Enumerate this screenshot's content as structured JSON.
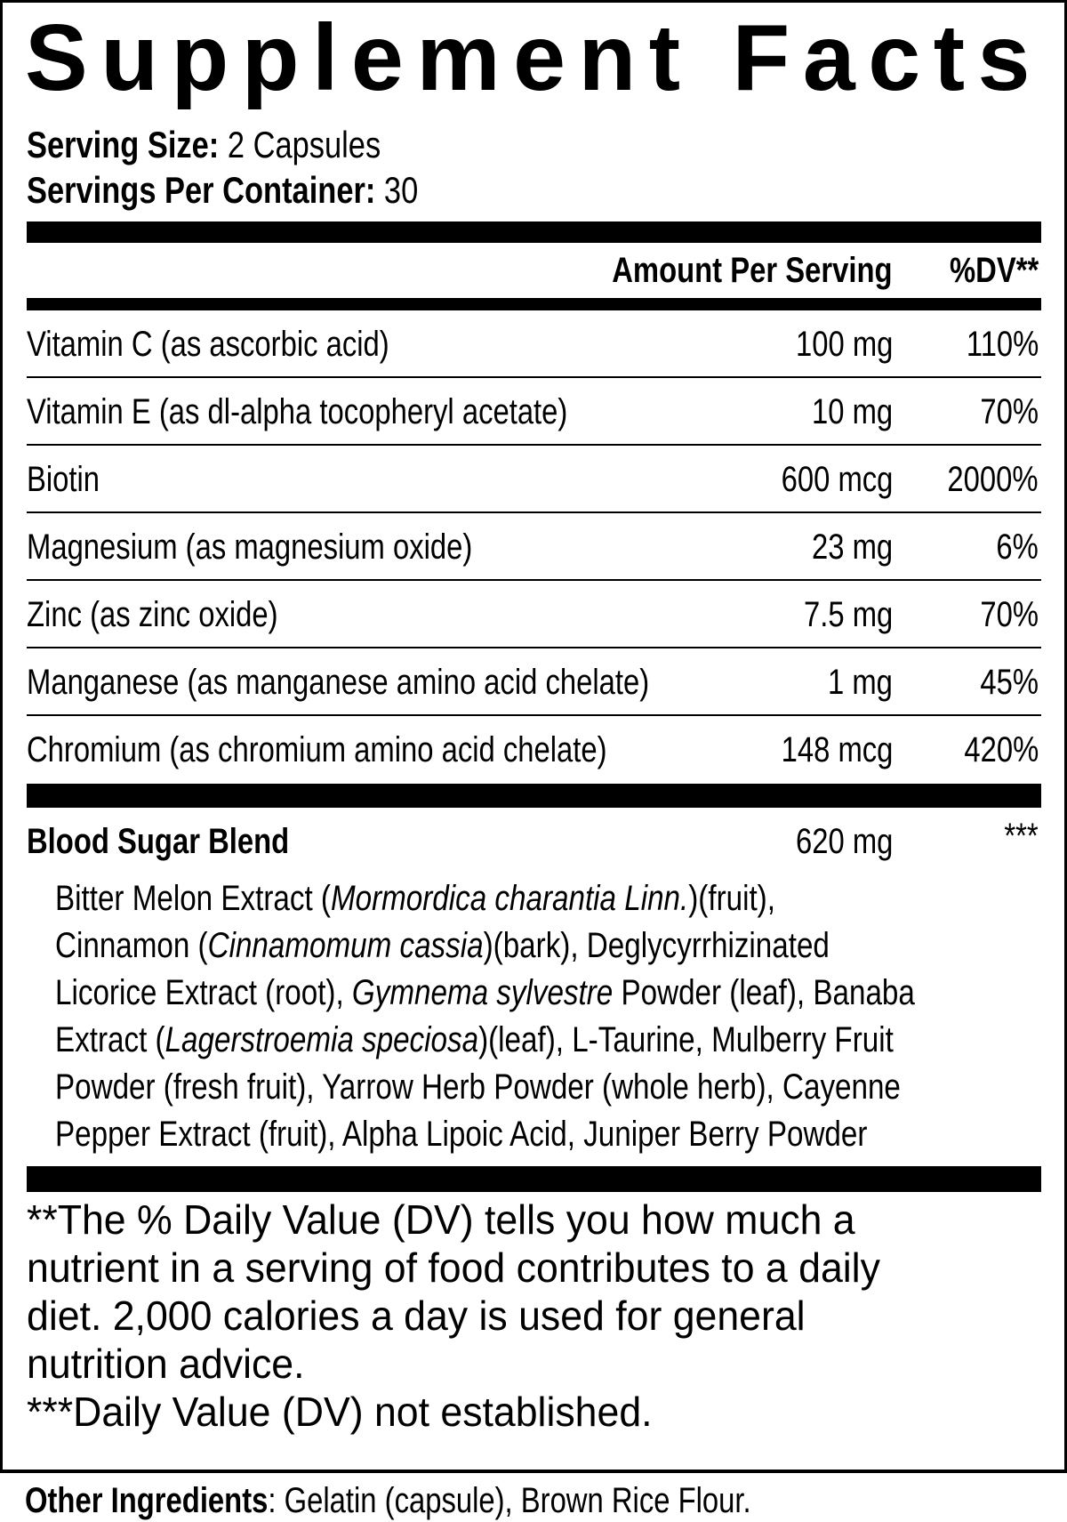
{
  "title": "Supplement Facts",
  "serving": {
    "size_label": "Serving Size:",
    "size_value": "2 Capsules",
    "per_container_label": "Servings Per Container:",
    "per_container_value": "30"
  },
  "header": {
    "amount": "Amount Per Serving",
    "dv": "%DV**"
  },
  "nutrients": [
    {
      "name": "Vitamin C (as ascorbic acid)",
      "amount": "100 mg",
      "dv": "110%"
    },
    {
      "name": "Vitamin E (as dl-alpha tocopheryl acetate)",
      "amount": "10 mg",
      "dv": "70%"
    },
    {
      "name": "Biotin",
      "amount": "600 mcg",
      "dv": "2000%"
    },
    {
      "name": "Magnesium (as magnesium oxide)",
      "amount": "23 mg",
      "dv": "6%"
    },
    {
      "name": "Zinc (as zinc oxide)",
      "amount": "7.5 mg",
      "dv": "70%"
    },
    {
      "name": "Manganese (as manganese amino acid chelate)",
      "amount": "1 mg",
      "dv": "45%"
    },
    {
      "name": "Chromium (as chromium amino acid chelate)",
      "amount": "148 mcg",
      "dv": "420%"
    }
  ],
  "blend": {
    "name": "Blood Sugar Blend",
    "amount": "620 mg",
    "dv": "***",
    "lines": [
      [
        {
          "t": "Bitter Melon Extract (",
          "i": false
        },
        {
          "t": "Mormordica charantia Linn.",
          "i": true
        },
        {
          "t": ")(fruit),",
          "i": false
        }
      ],
      [
        {
          "t": "Cinnamon (",
          "i": false
        },
        {
          "t": "Cinnamomum cassia",
          "i": true
        },
        {
          "t": ")(bark), Deglycyrrhizinated",
          "i": false
        }
      ],
      [
        {
          "t": "Licorice Extract (root), ",
          "i": false
        },
        {
          "t": "Gymnema sylvestre",
          "i": true
        },
        {
          "t": " Powder (leaf), Banaba",
          "i": false
        }
      ],
      [
        {
          "t": "Extract (",
          "i": false
        },
        {
          "t": "Lagerstroemia speciosa",
          "i": true
        },
        {
          "t": ")(leaf), L-Taurine, Mulberry Fruit",
          "i": false
        }
      ],
      [
        {
          "t": "Powder (fresh fruit), Yarrow Herb Powder (whole herb), Cayenne",
          "i": false
        }
      ],
      [
        {
          "t": "Pepper Extract (fruit), Alpha Lipoic Acid, Juniper Berry Powder",
          "i": false
        }
      ]
    ]
  },
  "footnotes": [
    "**The % Daily Value (DV) tells you how much a",
    "nutrient in a serving of food contributes to a daily",
    "diet. 2,000 calories a day is used for general",
    "nutrition advice.",
    "***Daily Value (DV) not established."
  ],
  "other": {
    "label": "Other Ingredients",
    "value": ": Gelatin (capsule), Brown Rice Flour."
  }
}
